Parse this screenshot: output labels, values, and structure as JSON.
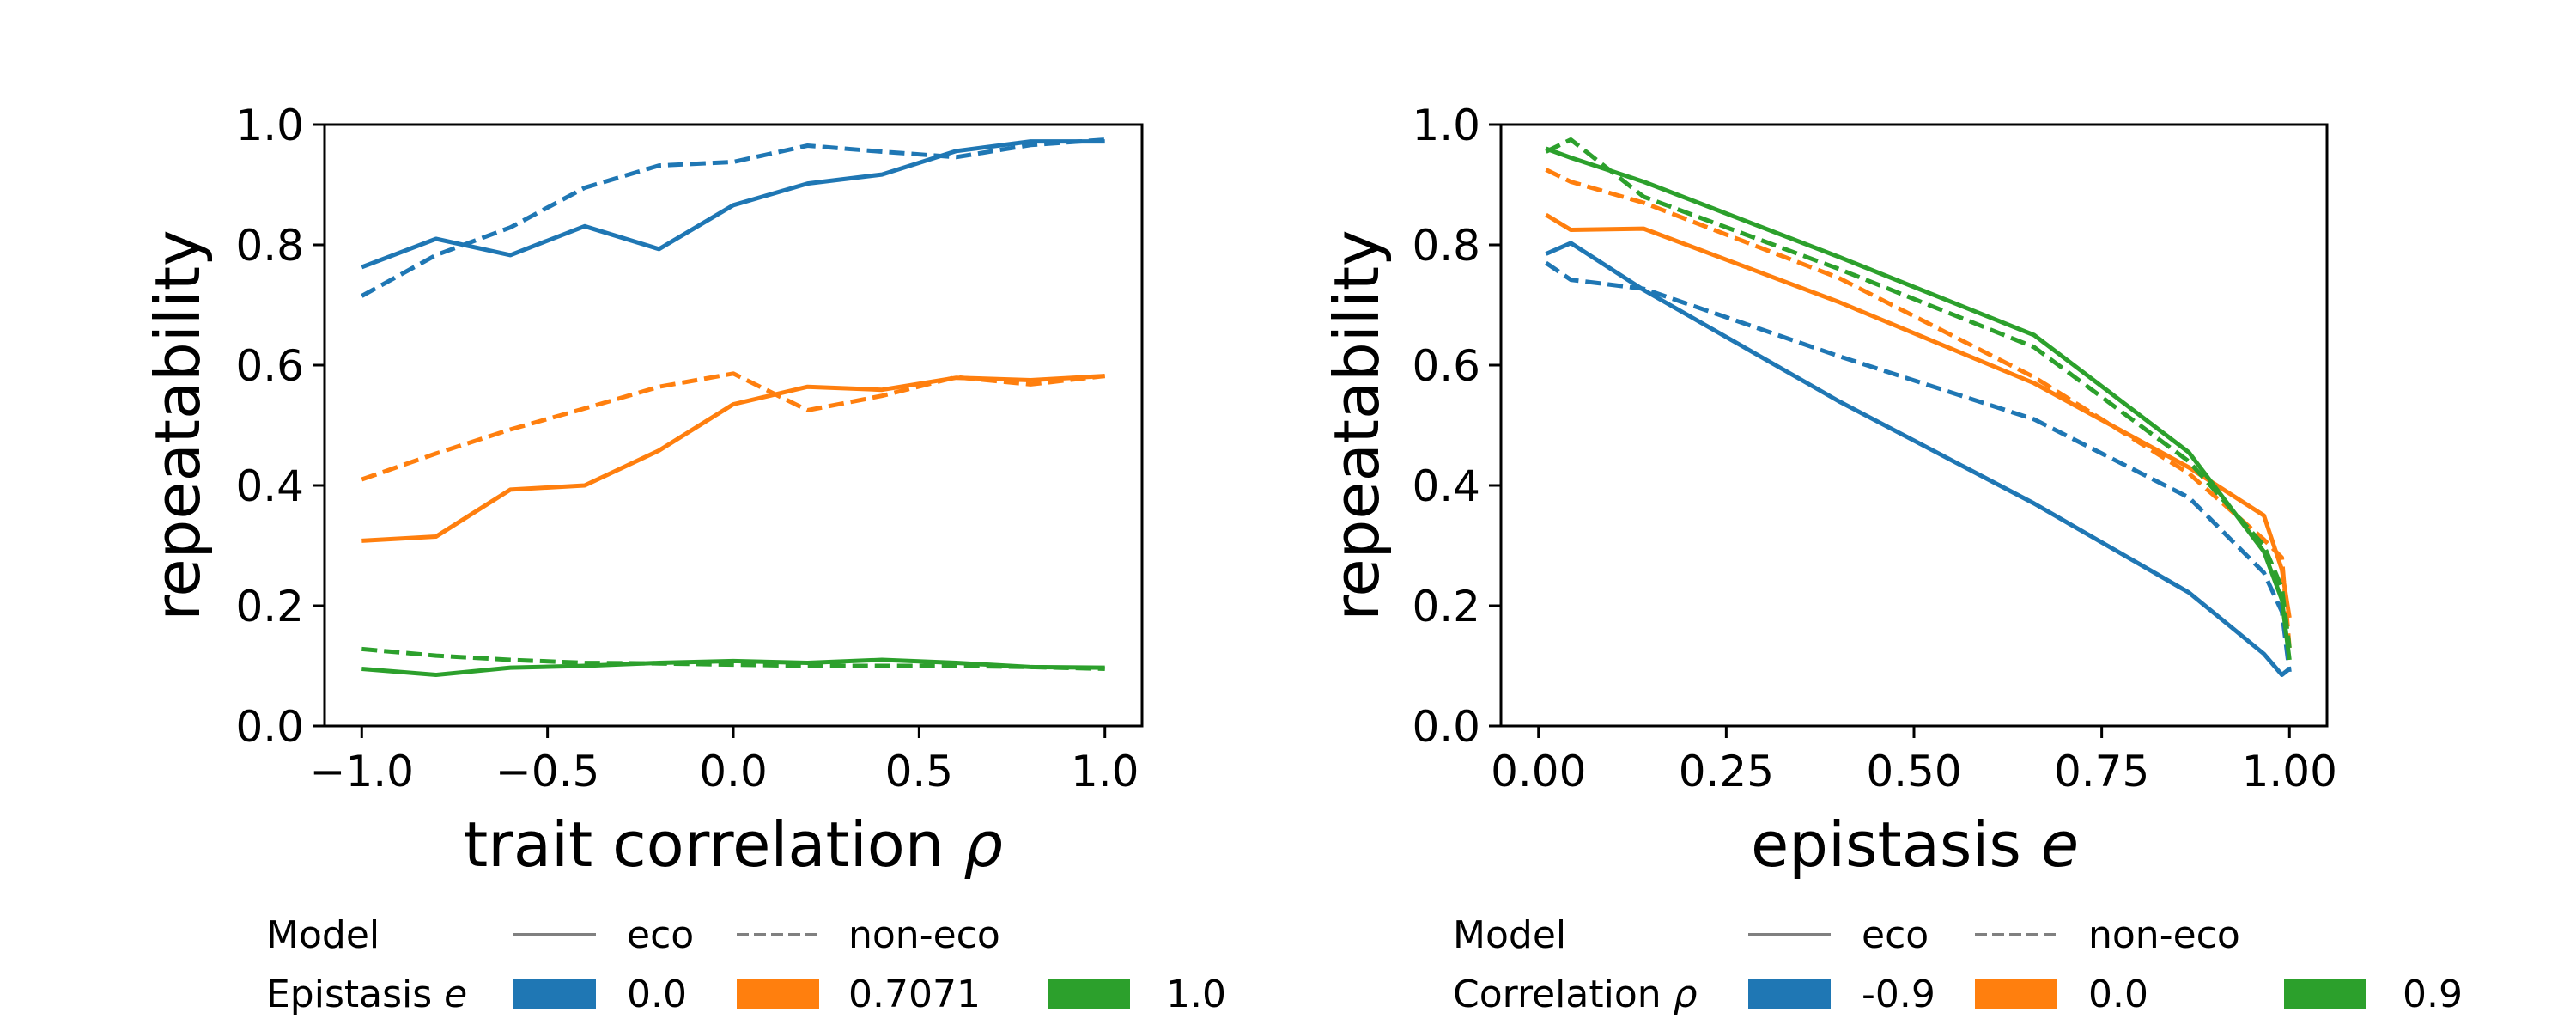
{
  "chart_data": [
    {
      "type": "line",
      "xlabel": "trait correlation",
      "xlabel_symbol": "ρ",
      "ylabel": "repeatability",
      "xlim": [
        -1.1,
        1.1
      ],
      "ylim": [
        0.0,
        1.0
      ],
      "xticks": [
        -1.0,
        -0.5,
        0.0,
        0.5,
        1.0
      ],
      "xtick_labels": [
        "−1.0",
        "−0.5",
        "0.0",
        "0.5",
        "1.0"
      ],
      "yticks": [
        0.0,
        0.2,
        0.4,
        0.6,
        0.8,
        1.0
      ],
      "ytick_labels": [
        "0.0",
        "0.2",
        "0.4",
        "0.6",
        "0.8",
        "1.0"
      ],
      "legend": {
        "placement": "below",
        "model_title": "Model",
        "model_entries": [
          {
            "label": "eco",
            "style": "solid"
          },
          {
            "label": "non-eco",
            "style": "dashed"
          }
        ],
        "color_title": "Epistasis",
        "color_title_symbol": "e",
        "color_entries": [
          {
            "label": "0.0",
            "color": "#1f77b4"
          },
          {
            "label": "0.7071",
            "color": "#ff7f0e"
          },
          {
            "label": "1.0",
            "color": "#2ca02c"
          }
        ]
      },
      "series": [
        {
          "color": "#1f77b4",
          "style": "solid",
          "x": [
            -1.0,
            -0.8,
            -0.6,
            -0.4,
            -0.2,
            0.0,
            0.2,
            0.4,
            0.6,
            0.8,
            1.0
          ],
          "y": [
            0.763,
            0.81,
            0.783,
            0.831,
            0.793,
            0.866,
            0.902,
            0.917,
            0.956,
            0.972,
            0.972
          ]
        },
        {
          "color": "#1f77b4",
          "style": "dashed",
          "x": [
            -1.0,
            -0.8,
            -0.6,
            -0.4,
            -0.2,
            0.0,
            0.2,
            0.4,
            0.6,
            0.8,
            1.0
          ],
          "y": [
            0.715,
            0.783,
            0.829,
            0.895,
            0.932,
            0.938,
            0.965,
            0.955,
            0.946,
            0.966,
            0.975
          ]
        },
        {
          "color": "#ff7f0e",
          "style": "solid",
          "x": [
            -1.0,
            -0.8,
            -0.6,
            -0.4,
            -0.2,
            0.0,
            0.2,
            0.4,
            0.6,
            0.8,
            1.0
          ],
          "y": [
            0.308,
            0.315,
            0.393,
            0.4,
            0.458,
            0.535,
            0.564,
            0.559,
            0.579,
            0.575,
            0.582
          ]
        },
        {
          "color": "#ff7f0e",
          "style": "dashed",
          "x": [
            -1.0,
            -0.8,
            -0.6,
            -0.4,
            -0.2,
            0.0,
            0.2,
            0.4,
            0.6,
            0.8,
            1.0
          ],
          "y": [
            0.41,
            0.453,
            0.493,
            0.528,
            0.564,
            0.586,
            0.525,
            0.549,
            0.58,
            0.568,
            0.582
          ]
        },
        {
          "color": "#2ca02c",
          "style": "solid",
          "x": [
            -1.0,
            -0.8,
            -0.6,
            -0.4,
            -0.2,
            0.0,
            0.2,
            0.4,
            0.6,
            0.8,
            1.0
          ],
          "y": [
            0.095,
            0.085,
            0.097,
            0.1,
            0.105,
            0.108,
            0.105,
            0.11,
            0.105,
            0.098,
            0.097
          ]
        },
        {
          "color": "#2ca02c",
          "style": "dashed",
          "x": [
            -1.0,
            -0.8,
            -0.6,
            -0.4,
            -0.2,
            0.0,
            0.2,
            0.4,
            0.6,
            0.8,
            1.0
          ],
          "y": [
            0.128,
            0.117,
            0.11,
            0.105,
            0.104,
            0.102,
            0.1,
            0.1,
            0.1,
            0.098,
            0.095
          ]
        }
      ]
    },
    {
      "type": "line",
      "xlabel": "epistasis",
      "xlabel_symbol": "e",
      "ylabel": "repeatability",
      "xlim": [
        -0.05,
        1.05
      ],
      "ylim": [
        0.0,
        1.0
      ],
      "xticks": [
        0.0,
        0.25,
        0.5,
        0.75,
        1.0
      ],
      "xtick_labels": [
        "0.00",
        "0.25",
        "0.50",
        "0.75",
        "1.00"
      ],
      "yticks": [
        0.0,
        0.2,
        0.4,
        0.6,
        0.8,
        1.0
      ],
      "ytick_labels": [
        "0.0",
        "0.2",
        "0.4",
        "0.6",
        "0.8",
        "1.0"
      ],
      "legend": {
        "placement": "below",
        "model_title": "Model",
        "model_entries": [
          {
            "label": "eco",
            "style": "solid"
          },
          {
            "label": "non-eco",
            "style": "dashed"
          }
        ],
        "color_title": "Correlation",
        "color_title_symbol": "ρ",
        "color_entries": [
          {
            "label": "-0.9",
            "color": "#1f77b4"
          },
          {
            "label": "0.0",
            "color": "#ff7f0e"
          },
          {
            "label": "0.9",
            "color": "#2ca02c"
          }
        ]
      },
      "series": [
        {
          "color": "#1f77b4",
          "style": "solid",
          "x": [
            0.01,
            0.043,
            0.14,
            0.4,
            0.66,
            0.866,
            0.966,
            0.99,
            1.0
          ],
          "y": [
            0.785,
            0.803,
            0.725,
            0.54,
            0.37,
            0.222,
            0.12,
            0.085,
            0.095
          ]
        },
        {
          "color": "#1f77b4",
          "style": "dashed",
          "x": [
            0.01,
            0.043,
            0.14,
            0.4,
            0.66,
            0.866,
            0.966,
            0.99,
            1.0
          ],
          "y": [
            0.77,
            0.742,
            0.727,
            0.615,
            0.51,
            0.38,
            0.255,
            0.19,
            0.09
          ]
        },
        {
          "color": "#ff7f0e",
          "style": "solid",
          "x": [
            0.01,
            0.043,
            0.14,
            0.4,
            0.66,
            0.866,
            0.966,
            0.99,
            1.0
          ],
          "y": [
            0.85,
            0.825,
            0.827,
            0.705,
            0.57,
            0.43,
            0.35,
            0.26,
            0.18
          ]
        },
        {
          "color": "#ff7f0e",
          "style": "dashed",
          "x": [
            0.01,
            0.043,
            0.14,
            0.4,
            0.66,
            0.866,
            0.966,
            0.99,
            1.0
          ],
          "y": [
            0.925,
            0.905,
            0.87,
            0.745,
            0.58,
            0.42,
            0.31,
            0.28,
            0.13
          ]
        },
        {
          "color": "#2ca02c",
          "style": "solid",
          "x": [
            0.01,
            0.043,
            0.14,
            0.4,
            0.66,
            0.866,
            0.966,
            0.99,
            1.0
          ],
          "y": [
            0.96,
            0.945,
            0.905,
            0.78,
            0.65,
            0.455,
            0.29,
            0.21,
            0.11
          ]
        },
        {
          "color": "#2ca02c",
          "style": "dashed",
          "x": [
            0.01,
            0.043,
            0.14,
            0.4,
            0.66,
            0.866,
            0.966,
            0.99,
            1.0
          ],
          "y": [
            0.955,
            0.975,
            0.88,
            0.76,
            0.63,
            0.44,
            0.3,
            0.23,
            0.13
          ]
        }
      ]
    }
  ]
}
